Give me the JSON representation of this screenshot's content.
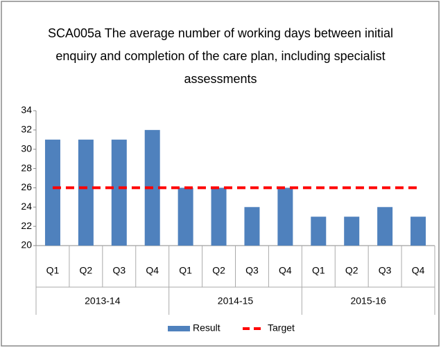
{
  "chart_data": {
    "type": "bar",
    "title": "SCA005a The average number of working days between initial enquiry and completion of the care plan, including specialist assessments",
    "categories": [
      "Q1",
      "Q2",
      "Q3",
      "Q4",
      "Q1",
      "Q2",
      "Q3",
      "Q4",
      "Q1",
      "Q2",
      "Q3",
      "Q4"
    ],
    "groups": [
      "2013-14",
      "2014-15",
      "2015-16"
    ],
    "series": [
      {
        "name": "Result",
        "type": "bar",
        "color": "#4f81bd",
        "values": [
          31,
          31,
          31,
          32,
          26,
          26,
          24,
          26,
          23,
          23,
          24,
          23
        ]
      },
      {
        "name": "Target",
        "type": "line",
        "color": "#ff0000",
        "values": [
          26,
          26,
          26,
          26,
          26,
          26,
          26,
          26,
          26,
          26,
          26,
          26
        ]
      }
    ],
    "ylim": [
      20,
      34
    ],
    "yticks": [
      20,
      22,
      24,
      26,
      28,
      30,
      32,
      34
    ],
    "grid": false,
    "legend": "bottom"
  }
}
